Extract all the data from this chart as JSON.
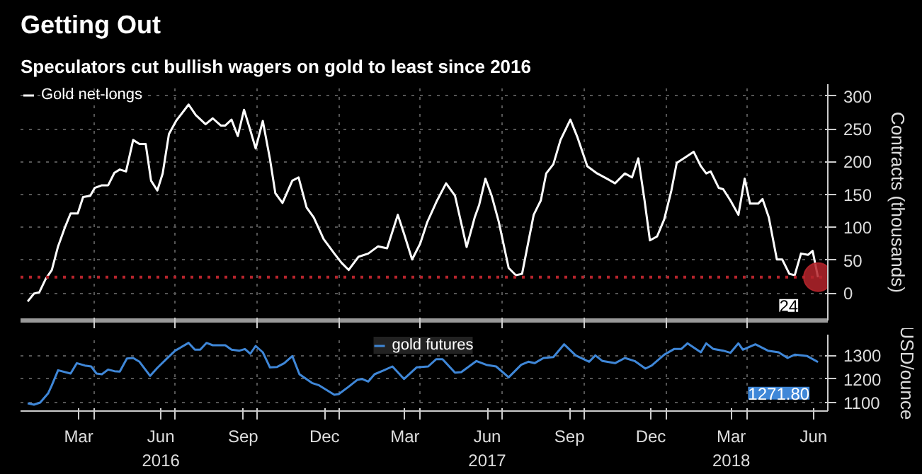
{
  "chart_data": [
    {
      "type": "line",
      "title": "Getting Out",
      "subtitle": "Speculators cut bullish wagers on gold to least since 2016",
      "ylabel": "Contracts (thousands)",
      "x": [
        "2016-01-18",
        "2016-01-25",
        "2016-01-31",
        "2016-02-07",
        "2016-02-14",
        "2016-02-21",
        "2016-02-29",
        "2016-03-06",
        "2016-03-14",
        "2016-03-20",
        "2016-03-28",
        "2016-04-02",
        "2016-04-10",
        "2016-04-17",
        "2016-04-24",
        "2016-04-30",
        "2016-05-07",
        "2016-05-15",
        "2016-05-22",
        "2016-05-29",
        "2016-06-04",
        "2016-06-11",
        "2016-06-17",
        "2016-06-24",
        "2016-07-02",
        "2016-07-16",
        "2016-07-24",
        "2016-08-04",
        "2016-08-12",
        "2016-08-21",
        "2016-08-26",
        "2016-09-02",
        "2016-09-09",
        "2016-09-16",
        "2016-09-23",
        "2016-09-29",
        "2016-10-07",
        "2016-10-15",
        "2016-10-21",
        "2016-10-29",
        "2016-11-09",
        "2016-11-16",
        "2016-11-25",
        "2016-12-03",
        "2016-12-14",
        "2016-12-26",
        "2017-01-03",
        "2017-01-11",
        "2017-01-22",
        "2017-02-02",
        "2017-02-13",
        "2017-02-23",
        "2017-03-07",
        "2017-03-14",
        "2017-03-23",
        "2017-04-01",
        "2017-04-09",
        "2017-04-20",
        "2017-04-30",
        "2017-05-10",
        "2017-05-23",
        "2017-06-01",
        "2017-06-06",
        "2017-06-13",
        "2017-06-20",
        "2017-06-28",
        "2017-07-09",
        "2017-07-17",
        "2017-07-24",
        "2017-08-06",
        "2017-08-14",
        "2017-08-20",
        "2017-08-28",
        "2017-09-05",
        "2017-09-16",
        "2017-09-24",
        "2017-10-05",
        "2017-10-16",
        "2017-10-27",
        "2017-11-05",
        "2017-11-16",
        "2017-11-24",
        "2017-12-01",
        "2017-12-08",
        "2017-12-14",
        "2017-12-22",
        "2017-12-30",
        "2018-01-07",
        "2018-01-13",
        "2018-01-21",
        "2018-02-01",
        "2018-02-09",
        "2018-02-15",
        "2018-02-20",
        "2018-03-01",
        "2018-03-06",
        "2018-03-14",
        "2018-03-23",
        "2018-03-30",
        "2018-04-05",
        "2018-04-14",
        "2018-04-19",
        "2018-04-26",
        "2018-05-05",
        "2018-05-11",
        "2018-05-19",
        "2018-05-25",
        "2018-06-01",
        "2018-06-09",
        "2018-06-14",
        "2018-06-20"
      ],
      "series": [
        {
          "name": "Gold net-longs",
          "color": "#ffffff",
          "values": [
            -13,
            -1,
            1,
            21,
            35,
            71,
            101,
            121,
            121,
            146,
            148,
            160,
            164,
            164,
            183,
            188,
            185,
            233,
            227,
            227,
            171,
            156,
            182,
            242,
            262,
            287,
            271,
            257,
            266,
            255,
            255,
            264,
            239,
            279,
            248,
            220,
            262,
            204,
            152,
            137,
            171,
            176,
            130,
            115,
            82,
            60,
            46,
            35,
            55,
            60,
            71,
            68,
            119,
            90,
            51,
            75,
            108,
            141,
            167,
            148,
            70,
            115,
            134,
            174,
            148,
            108,
            38,
            27,
            29,
            119,
            141,
            182,
            196,
            233,
            264,
            237,
            193,
            182,
            174,
            167,
            182,
            176,
            205,
            141,
            80,
            86,
            112,
            156,
            198,
            205,
            215,
            193,
            182,
            185,
            160,
            158,
            141,
            119,
            174,
            136,
            136,
            143,
            115,
            51,
            51,
            29,
            27,
            60,
            58,
            64,
            24
          ]
        }
      ],
      "xlim": [
        "2016-01-10",
        "2018-07-01"
      ],
      "xticks": [
        {
          "value": "2016-04-01",
          "label": null
        },
        {
          "value": "2016-07-01",
          "label": null
        },
        {
          "value": "2016-10-01",
          "label": null
        },
        {
          "value": "2017-01-01",
          "label": null
        },
        {
          "value": "2017-04-01",
          "label": null
        },
        {
          "value": "2017-07-01",
          "label": null
        },
        {
          "value": "2017-10-01",
          "label": null
        },
        {
          "value": "2018-01-01",
          "label": null
        },
        {
          "value": "2018-04-01",
          "label": null
        }
      ],
      "ylim": [
        -42,
        318
      ],
      "yticks": [
        0,
        50,
        100,
        150,
        200,
        250,
        300
      ],
      "tick_labels": "y",
      "grid": true,
      "legend": "top left",
      "ref_lines": [
        {
          "axis": "y",
          "value": 24,
          "color": "#b5242c",
          "line_style": "dotted"
        }
      ],
      "annotations": [
        {
          "text": "24",
          "x": "2018-06-20",
          "y": 24
        }
      ]
    },
    {
      "type": "line",
      "ylabel": "USD/ounce",
      "x": [
        "2016-01-18",
        "2016-01-25",
        "2016-02-01",
        "2016-02-10",
        "2016-02-14",
        "2016-02-21",
        "2016-03-06",
        "2016-03-13",
        "2016-03-22",
        "2016-03-29",
        "2016-04-04",
        "2016-04-10",
        "2016-04-17",
        "2016-04-24",
        "2016-04-30",
        "2016-05-08",
        "2016-05-15",
        "2016-05-22",
        "2016-06-03",
        "2016-06-11",
        "2016-06-21",
        "2016-07-01",
        "2016-07-16",
        "2016-07-23",
        "2016-07-29",
        "2016-08-05",
        "2016-08-12",
        "2016-08-26",
        "2016-09-02",
        "2016-09-11",
        "2016-09-17",
        "2016-09-23",
        "2016-09-29",
        "2016-10-07",
        "2016-10-15",
        "2016-10-23",
        "2016-10-31",
        "2016-11-09",
        "2016-11-17",
        "2016-12-01",
        "2016-12-09",
        "2016-12-26",
        "2016-12-31",
        "2017-01-11",
        "2017-01-21",
        "2017-01-26",
        "2017-02-02",
        "2017-02-09",
        "2017-02-19",
        "2017-03-01",
        "2017-03-14",
        "2017-03-28",
        "2017-04-10",
        "2017-04-19",
        "2017-04-26",
        "2017-05-10",
        "2017-05-17",
        "2017-06-03",
        "2017-06-14",
        "2017-06-25",
        "2017-07-09",
        "2017-07-23",
        "2017-07-31",
        "2017-08-07",
        "2017-08-17",
        "2017-08-28",
        "2017-09-09",
        "2017-09-22",
        "2017-10-07",
        "2017-10-14",
        "2017-10-22",
        "2017-11-05",
        "2017-11-16",
        "2017-11-27",
        "2017-12-09",
        "2017-12-16",
        "2017-12-30",
        "2018-01-10",
        "2018-01-18",
        "2018-01-25",
        "2018-02-09",
        "2018-02-15",
        "2018-02-23",
        "2018-03-06",
        "2018-03-14",
        "2018-03-23",
        "2018-03-28",
        "2018-04-11",
        "2018-04-25",
        "2018-05-07",
        "2018-05-17",
        "2018-05-25",
        "2018-06-08",
        "2018-06-20"
      ],
      "series": [
        {
          "name": "gold futures",
          "color": "#3f87d8",
          "values": [
            1097,
            1091,
            1100,
            1140,
            1173,
            1237,
            1223,
            1267,
            1257,
            1253,
            1223,
            1220,
            1240,
            1233,
            1231,
            1287,
            1289,
            1273,
            1213,
            1247,
            1284,
            1320,
            1353,
            1324,
            1324,
            1353,
            1343,
            1343,
            1324,
            1320,
            1327,
            1307,
            1340,
            1313,
            1249,
            1251,
            1267,
            1297,
            1220,
            1183,
            1173,
            1133,
            1136,
            1167,
            1197,
            1200,
            1189,
            1220,
            1236,
            1253,
            1200,
            1249,
            1253,
            1284,
            1284,
            1227,
            1229,
            1276,
            1260,
            1253,
            1207,
            1260,
            1273,
            1267,
            1289,
            1293,
            1347,
            1300,
            1273,
            1300,
            1276,
            1267,
            1289,
            1276,
            1244,
            1257,
            1303,
            1327,
            1327,
            1351,
            1313,
            1351,
            1327,
            1320,
            1311,
            1351,
            1324,
            1347,
            1320,
            1313,
            1289,
            1303,
            1297,
            1271.8
          ]
        }
      ],
      "xlim": [
        "2016-01-10",
        "2018-07-01"
      ],
      "xticks": [
        {
          "value": "2016-03-15",
          "label": "Mar"
        },
        {
          "value": "2016-04-01",
          "label": null
        },
        {
          "value": "2016-06-15",
          "label": "Jun\n2016"
        },
        {
          "value": "2016-07-01",
          "label": null
        },
        {
          "value": "2016-09-15",
          "label": "Sep"
        },
        {
          "value": "2016-10-01",
          "label": null
        },
        {
          "value": "2016-12-15",
          "label": "Dec"
        },
        {
          "value": "2017-01-01",
          "label": null
        },
        {
          "value": "2017-03-15",
          "label": "Mar"
        },
        {
          "value": "2017-04-01",
          "label": null
        },
        {
          "value": "2017-06-15",
          "label": "Jun\n2017"
        },
        {
          "value": "2017-07-01",
          "label": null
        },
        {
          "value": "2017-09-15",
          "label": "Sep"
        },
        {
          "value": "2017-10-01",
          "label": null
        },
        {
          "value": "2017-12-15",
          "label": "Dec"
        },
        {
          "value": "2018-01-01",
          "label": null
        },
        {
          "value": "2018-03-15",
          "label": "Mar\n2018"
        },
        {
          "value": "2018-04-01",
          "label": null
        },
        {
          "value": "2018-06-15",
          "label": "Jun"
        }
      ],
      "ylim": [
        1064,
        1388
      ],
      "yticks": [
        1100,
        1200,
        1300
      ],
      "grid": true,
      "legend": "top",
      "annotations": [
        {
          "text": "1271.80",
          "x": "2018-06-20",
          "y": 1271.8
        }
      ]
    }
  ]
}
